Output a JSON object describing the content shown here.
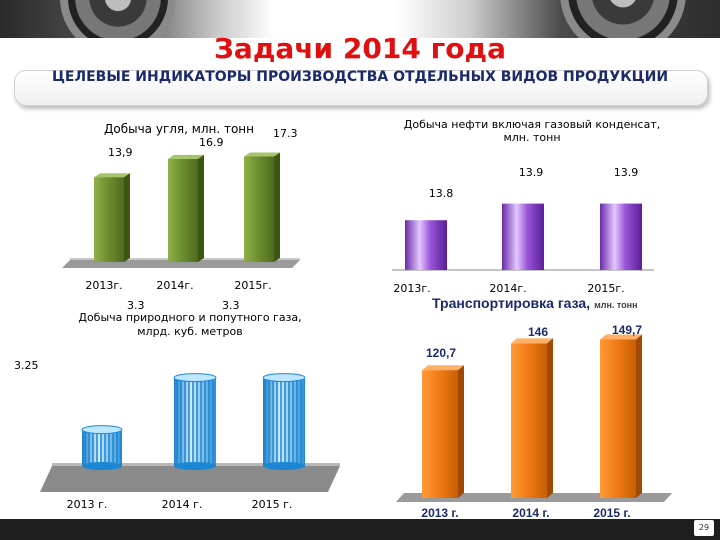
{
  "slide": {
    "title": "Задачи 2014 года",
    "subtitle": "ЦЕЛЕВЫЕ ИНДИКАТОРЫ ПРОИЗВОДСТВА ОТДЕЛЬНЫХ ВИДОВ ПРОДУКЦИИ",
    "page_number": "29"
  },
  "colors": {
    "title": "#e01010",
    "subtitle": "#1b2a6a",
    "coal": "#6b8c2e",
    "oil": "#8a45c8",
    "gas": "#3ea8e8",
    "transport": "#ef7a12"
  },
  "chart_data": [
    {
      "id": "coal",
      "type": "bar",
      "title": "Добыча угля, млн. тонн",
      "categories": [
        "2013г.",
        "2014г.",
        "2015г."
      ],
      "values": [
        13.9,
        16.9,
        17.3
      ],
      "value_labels": [
        "13,9",
        "16.9",
        "17.3"
      ],
      "ylim": [
        0,
        20
      ],
      "grid": false,
      "legend": "none"
    },
    {
      "id": "oil",
      "type": "bar",
      "title": "Добыча нефти включая газовый конденсат, млн. тонн",
      "categories": [
        "2013г.",
        "2014г.",
        "2015г."
      ],
      "values": [
        13.8,
        13.9,
        13.9
      ],
      "value_labels": [
        "13.8",
        "13.9",
        "13.9"
      ],
      "ylim": [
        13.5,
        14.0
      ],
      "grid": false,
      "legend": "none"
    },
    {
      "id": "gas",
      "type": "bar",
      "title": "Добыча природного и попутного газа, млрд. куб. метров",
      "categories": [
        "2013 г.",
        "2014 г.",
        "2015 г."
      ],
      "values": [
        3.25,
        3.3,
        3.3
      ],
      "value_labels": [
        "3.25",
        "3.3",
        "3.3"
      ],
      "ylim": [
        3.215,
        3.315
      ],
      "grid": false,
      "legend": "none"
    },
    {
      "id": "transport",
      "type": "bar",
      "title": "Транспортировка газа,",
      "title_unit": "млн. тонн",
      "categories": [
        "2013 г.",
        "2014 г.",
        "2015 г."
      ],
      "values": [
        120.7,
        146,
        149.7
      ],
      "value_labels": [
        "120,7",
        "146",
        "149,7"
      ],
      "ylim": [
        0,
        170
      ],
      "grid": false,
      "legend": "none"
    }
  ]
}
